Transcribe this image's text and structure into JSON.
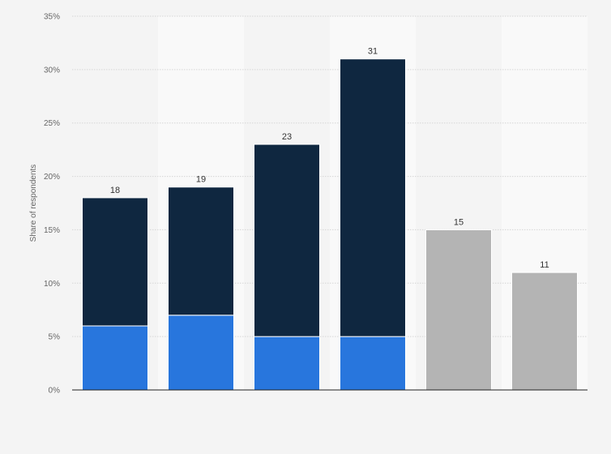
{
  "chart_data": {
    "type": "bar",
    "stacked": true,
    "title": "",
    "xlabel": "",
    "ylabel": "Share of respondents",
    "ylim": [
      0,
      35
    ],
    "y_ticks": [
      "0%",
      "5%",
      "10%",
      "15%",
      "20%",
      "25%",
      "30%",
      "35%"
    ],
    "y_tick_values": [
      0,
      5,
      10,
      15,
      20,
      25,
      30,
      35
    ],
    "grid": true,
    "legend": "none",
    "categories": [
      "",
      "",
      "",
      "",
      "",
      ""
    ],
    "series": [
      {
        "values": [
          6,
          7,
          5,
          5,
          null,
          null
        ],
        "color": "#2876dd"
      },
      {
        "values": [
          12,
          12,
          18,
          26,
          null,
          null
        ],
        "color": "#0f2740"
      },
      {
        "values": [
          null,
          null,
          null,
          null,
          15,
          11
        ],
        "color": "#b4b4b4"
      }
    ],
    "totals": [
      18,
      19,
      23,
      31,
      15,
      11
    ],
    "total_labels": [
      "18",
      "19",
      "23",
      "31",
      "15",
      "11"
    ],
    "colors": {
      "background": "#f4f4f4",
      "band": "#f9f9f9",
      "grid": "#d6d6d6",
      "axis": "#222222"
    }
  }
}
